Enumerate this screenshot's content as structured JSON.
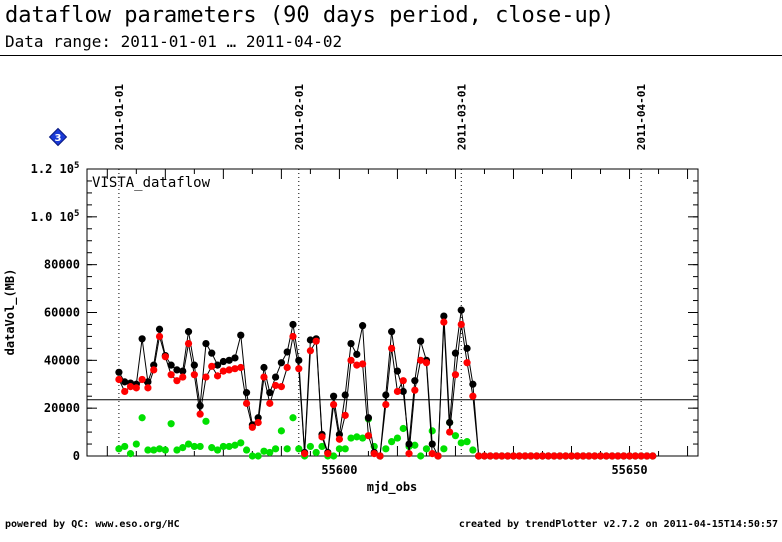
{
  "header": {
    "title": "dataflow parameters (90 days period, close-up)",
    "subtitle": "Data range: 2011-01-01 … 2011-04-02"
  },
  "footer": {
    "left": "powered by QC: www.eso.org/HC",
    "right": "created by trendPlotter v2.7.2 on 2011-04-15T14:50:57"
  },
  "badge": {
    "text": "3",
    "color": "#1a3ad6"
  },
  "chart_data": {
    "type": "scatter",
    "title": "VISTA_dataflow",
    "xlabel": "mjd_obs",
    "ylabel": "dataVol_(MB)",
    "xlim": [
      55556.5,
      55661.8
    ],
    "ylim": [
      0,
      120000
    ],
    "xticks": [
      55600,
      55650
    ],
    "ytick_labels": [
      {
        "value": 0,
        "label": "0"
      },
      {
        "value": 20000,
        "label": "20000"
      },
      {
        "value": 40000,
        "label": "40000"
      },
      {
        "value": 60000,
        "label": "60000"
      },
      {
        "value": 80000,
        "label": "80000"
      },
      {
        "value": 100000,
        "label": "1.0 10",
        "exp": "5"
      },
      {
        "value": 120000,
        "label": "1.2 10",
        "exp": "5"
      }
    ],
    "reference_line": 23500,
    "date_markers": [
      {
        "x": 55562.0,
        "label": "2011-01-01"
      },
      {
        "x": 55593.0,
        "label": "2011-02-01"
      },
      {
        "x": 55621.0,
        "label": "2011-03-01"
      },
      {
        "x": 55652.0,
        "label": "2011-04-01"
      }
    ],
    "x": [
      55562,
      55563,
      55564,
      55565,
      55566,
      55567,
      55568,
      55569,
      55570,
      55571,
      55572,
      55573,
      55574,
      55575,
      55576,
      55577,
      55578,
      55579,
      55580,
      55581,
      55582,
      55583,
      55584,
      55585,
      55586,
      55587,
      55588,
      55589,
      55590,
      55591,
      55592,
      55593,
      55594,
      55595,
      55596,
      55597,
      55598,
      55599,
      55600,
      55601,
      55602,
      55603,
      55604,
      55605,
      55606,
      55607,
      55608,
      55609,
      55610,
      55611,
      55612,
      55613,
      55614,
      55615,
      55616,
      55617,
      55618,
      55619,
      55620,
      55621,
      55622,
      55623,
      55624,
      55625,
      55626,
      55627,
      55628,
      55629,
      55630,
      55631,
      55632,
      55633,
      55634,
      55635,
      55636,
      55637,
      55638,
      55639,
      55640,
      55641,
      55642,
      55643,
      55644,
      55645,
      55646,
      55647,
      55648,
      55649,
      55650,
      55651,
      55652,
      55653,
      55654
    ],
    "series": [
      {
        "color": "#000000",
        "line": true,
        "values": [
          35000,
          31000,
          30500,
          30000,
          49000,
          31000,
          38000,
          53000,
          42000,
          38000,
          36000,
          35500,
          52000,
          38000,
          21000,
          47000,
          43000,
          38000,
          39500,
          40000,
          41000,
          50500,
          26500,
          13000,
          16000,
          37000,
          26500,
          33000,
          39000,
          43500,
          55000,
          40000,
          1500,
          48500,
          49000,
          9000,
          1500,
          25000,
          9000,
          25500,
          47000,
          42500,
          54500,
          16000,
          1500,
          0,
          25500,
          52000,
          35500,
          27000,
          5000,
          31500,
          48000,
          40000,
          5000,
          0,
          58500,
          14000,
          43000,
          61000,
          45000,
          30000,
          0,
          0,
          0,
          0,
          0,
          0,
          0,
          0,
          0,
          0,
          0,
          0,
          0,
          0,
          0,
          0,
          0,
          0,
          0,
          0,
          0,
          0,
          0,
          0,
          0,
          0,
          0,
          0,
          0,
          0,
          0
        ]
      },
      {
        "color": "#ff0000",
        "line": true,
        "values": [
          32000,
          27000,
          29000,
          28500,
          32000,
          28500,
          36000,
          50000,
          41500,
          34000,
          31500,
          33000,
          47000,
          34000,
          17500,
          33000,
          37500,
          33500,
          35500,
          36000,
          36500,
          37000,
          22000,
          12000,
          14000,
          33000,
          22000,
          29500,
          29000,
          37000,
          50000,
          36500,
          1000,
          44000,
          48000,
          8000,
          1000,
          21500,
          7000,
          17000,
          40000,
          38000,
          38500,
          8500,
          1000,
          0,
          21500,
          45000,
          27000,
          31500,
          1000,
          27500,
          40000,
          39000,
          1000,
          0,
          56000,
          10000,
          34000,
          55000,
          39000,
          25000,
          0,
          0,
          0,
          0,
          0,
          0,
          0,
          0,
          0,
          0,
          0,
          0,
          0,
          0,
          0,
          0,
          0,
          0,
          0,
          0,
          0,
          0,
          0,
          0,
          0,
          0,
          0,
          0,
          0,
          0,
          0
        ]
      },
      {
        "color": "#00e000",
        "line": false,
        "values": [
          3000,
          4000,
          1000,
          5000,
          16000,
          2500,
          2500,
          3000,
          2500,
          13500,
          2500,
          3500,
          5000,
          4000,
          4000,
          14500,
          3500,
          2500,
          4000,
          4000,
          4500,
          5500,
          2500,
          0,
          0,
          2000,
          1500,
          3000,
          10500,
          3000,
          16000,
          3000,
          0,
          4000,
          1500,
          4000,
          0,
          0,
          3000,
          3000,
          7500,
          8000,
          7500,
          15500,
          4000,
          0,
          3000,
          6000,
          7500,
          11500,
          4000,
          4500,
          0,
          3000,
          10500,
          0,
          3000,
          14000,
          8500,
          5500,
          6000,
          2500,
          0,
          0,
          0,
          0,
          0,
          0,
          0,
          0,
          0,
          0,
          0,
          0,
          0,
          0,
          0,
          0,
          0,
          0,
          0,
          0,
          0,
          0,
          0,
          0,
          0,
          0,
          0,
          0,
          0,
          0,
          0
        ]
      }
    ]
  }
}
